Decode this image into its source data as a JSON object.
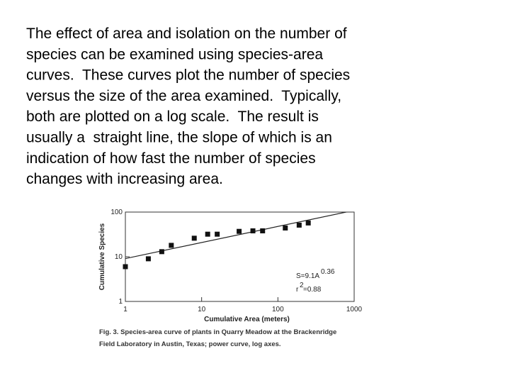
{
  "text": [
    "The effect of area and isolation on the number of",
    "species can be examined using species-area",
    "curves.  These curves plot the number of species",
    "versus the size of the area examined.  Typically,",
    "both are plotted on a log scale.  The result is",
    "usually a  straight line, the slope of which is an",
    "indication of how fast the number of species",
    "changes with increasing area."
  ],
  "chart_data": {
    "type": "scatter",
    "x": [
      1,
      2,
      3,
      4,
      8,
      12,
      16,
      31,
      47,
      63,
      125,
      190,
      250
    ],
    "values": [
      6,
      9,
      13,
      18,
      26,
      32,
      32,
      37,
      38,
      38,
      44,
      51,
      57
    ],
    "color": "#111111",
    "fit_line": {
      "x": [
        1,
        1000
      ],
      "values": [
        9.1,
        109
      ]
    },
    "xlim": [
      1,
      1000
    ],
    "ylim": [
      1,
      100
    ],
    "xticks": [
      1,
      10,
      100,
      1000
    ],
    "yticks": [
      1,
      10,
      100
    ],
    "xscale": "log",
    "yscale": "log",
    "xlabel": "Cumulative Area (meters)",
    "ylabel": "Cumulative Species",
    "annotations": [
      "S=9.1A",
      "0.36",
      "r",
      "2",
      "=0.88"
    ],
    "caption": [
      "Fig. 3. Species-area curve of plants in Quarry Meadow at the Brackenridge",
      "Field Laboratory in Austin, Texas; power curve, log axes."
    ]
  }
}
